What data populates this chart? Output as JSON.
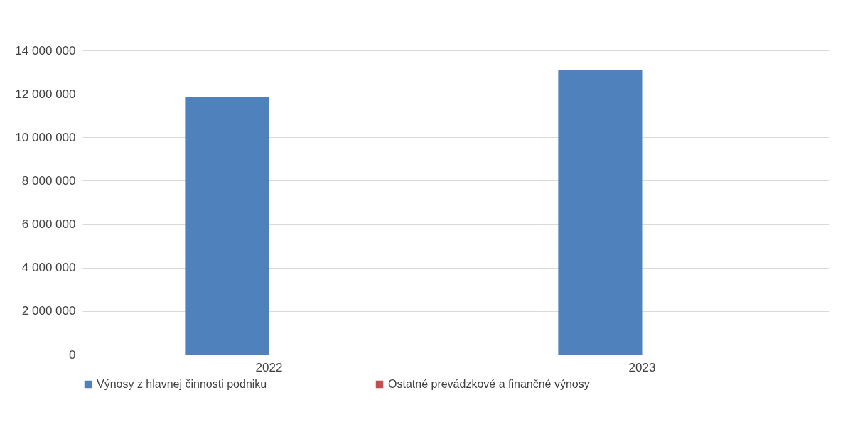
{
  "chart_data": {
    "type": "bar",
    "categories": [
      "2022",
      "2023"
    ],
    "series": [
      {
        "name": "Výnosy z hlavnej činnosti podniku",
        "color": "#4f81bd",
        "values": [
          11850000,
          13100000
        ]
      },
      {
        "name": "Ostatné prevádzkové a finančné výnosy",
        "color": "#c0504d",
        "values": [
          0,
          0
        ]
      }
    ],
    "ylim": [
      0,
      14000000
    ],
    "yticks": [
      {
        "value": 0,
        "label": "0"
      },
      {
        "value": 2000000,
        "label": "2 000 000"
      },
      {
        "value": 4000000,
        "label": "4 000 000"
      },
      {
        "value": 6000000,
        "label": "6 000 000"
      },
      {
        "value": 8000000,
        "label": "8 000 000"
      },
      {
        "value": 10000000,
        "label": "10 000 000"
      },
      {
        "value": 12000000,
        "label": "12 000 000"
      },
      {
        "value": 14000000,
        "label": "14 000 000"
      }
    ],
    "grid": "y",
    "legend": "bottom"
  }
}
